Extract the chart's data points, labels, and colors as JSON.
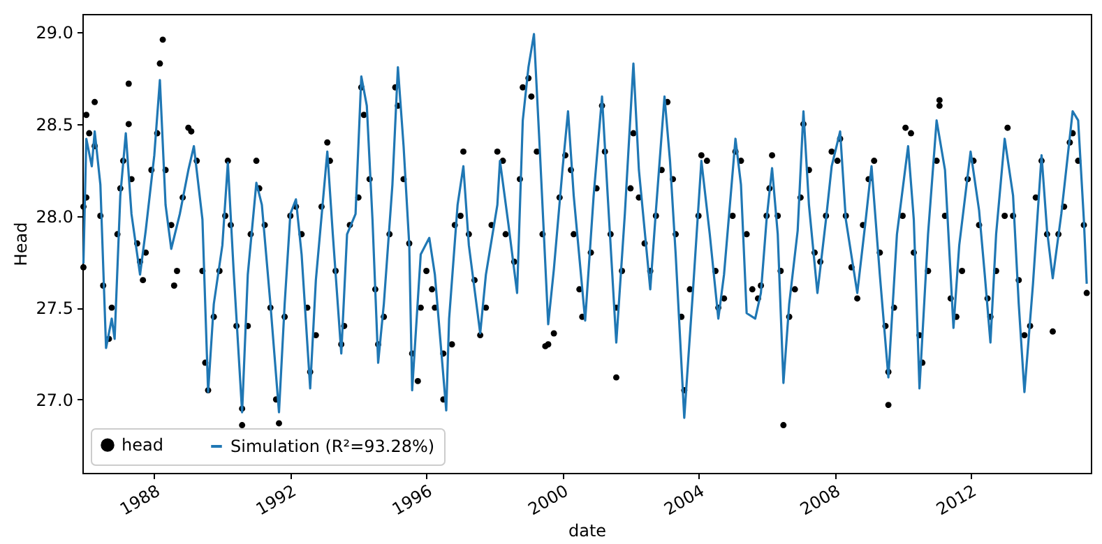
{
  "chart_data": {
    "type": "line",
    "xlabel": "date",
    "ylabel": "Head",
    "legend": "bottom left",
    "xlim": [
      "1985-11-20",
      "2015-07-15"
    ],
    "ylim": [
      26.6,
      29.1
    ],
    "xticks": [
      "1988",
      "1992",
      "1996",
      "2000",
      "2004",
      "2008",
      "2012"
    ],
    "yticks": [
      {
        "value": 27,
        "label": "27.0"
      },
      {
        "value": 27.5,
        "label": "27.5"
      },
      {
        "value": 28,
        "label": "28.0"
      },
      {
        "value": 28.5,
        "label": "28.5"
      },
      {
        "value": 29,
        "label": "29.0"
      }
    ],
    "series": [
      {
        "name": "head",
        "type": "scatter",
        "marker": "circle",
        "color": "#000000",
        "x": [
          "1985-12",
          "1985-12",
          "1986-01",
          "1986-01",
          "1986-02",
          "1986-04",
          "1986-04",
          "1986-06",
          "1986-07",
          "1986-09",
          "1986-10",
          "1986-12",
          "1987-01",
          "1987-02",
          "1987-04",
          "1987-04",
          "1987-05",
          "1987-07",
          "1987-08",
          "1987-09",
          "1987-10",
          "1987-12",
          "1988-02",
          "1988-03",
          "1988-04",
          "1988-05",
          "1988-07",
          "1988-08",
          "1988-09",
          "1988-11",
          "1989-01",
          "1989-02",
          "1989-04",
          "1989-06",
          "1989-07",
          "1989-08",
          "1989-10",
          "1989-12",
          "1990-02",
          "1990-03",
          "1990-04",
          "1990-06",
          "1990-08",
          "1990-08",
          "1990-10",
          "1990-11",
          "1991-01",
          "1991-02",
          "1991-04",
          "1991-06",
          "1991-08",
          "1991-09",
          "1991-11",
          "1992-01",
          "1992-03",
          "1992-05",
          "1992-07",
          "1992-08",
          "1992-10",
          "1992-12",
          "1993-02",
          "1993-03",
          "1993-05",
          "1993-07",
          "1993-08",
          "1993-10",
          "1994-01",
          "1994-02",
          "1994-03",
          "1994-05",
          "1994-07",
          "1994-08",
          "1994-10",
          "1994-12",
          "1995-02",
          "1995-03",
          "1995-05",
          "1995-07",
          "1995-08",
          "1995-10",
          "1995-11",
          "1996-01",
          "1996-03",
          "1996-04",
          "1996-07",
          "1996-07",
          "1996-10",
          "1996-11",
          "1997-01",
          "1997-02",
          "1997-04",
          "1997-06",
          "1997-08",
          "1997-10",
          "1997-12",
          "1998-02",
          "1998-04",
          "1998-05",
          "1998-08",
          "1998-10",
          "1998-11",
          "1999-01",
          "1999-02",
          "1999-04",
          "1999-06",
          "1999-07",
          "1999-08",
          "1999-10",
          "1999-12",
          "2000-02",
          "2000-04",
          "2000-05",
          "2000-07",
          "2000-08",
          "2000-11",
          "2001-01",
          "2001-03",
          "2001-04",
          "2001-06",
          "2001-08",
          "2001-08",
          "2001-10",
          "2002-01",
          "2002-02",
          "2002-04",
          "2002-06",
          "2002-08",
          "2002-10",
          "2002-12",
          "2003-02",
          "2003-04",
          "2003-05",
          "2003-07",
          "2003-08",
          "2003-10",
          "2004-01",
          "2004-02",
          "2004-04",
          "2004-07",
          "2004-08",
          "2004-10",
          "2005-01",
          "2005-02",
          "2005-04",
          "2005-06",
          "2005-08",
          "2005-10",
          "2005-11",
          "2006-01",
          "2006-02",
          "2006-03",
          "2006-05",
          "2006-06",
          "2006-07",
          "2006-09",
          "2006-11",
          "2007-01",
          "2007-02",
          "2007-04",
          "2007-06",
          "2007-08",
          "2007-10",
          "2007-12",
          "2008-02",
          "2008-03",
          "2008-05",
          "2008-07",
          "2008-09",
          "2008-11",
          "2009-01",
          "2009-03",
          "2009-05",
          "2009-07",
          "2009-08",
          "2009-08",
          "2009-10",
          "2010-01",
          "2010-02",
          "2010-04",
          "2010-05",
          "2010-07",
          "2010-08",
          "2010-10",
          "2011-01",
          "2011-02",
          "2011-02",
          "2011-04",
          "2011-06",
          "2011-08",
          "2011-10",
          "2011-12",
          "2012-02",
          "2012-04",
          "2012-07",
          "2012-08",
          "2012-10",
          "2013-01",
          "2013-02",
          "2013-04",
          "2013-06",
          "2013-08",
          "2013-10",
          "2013-12",
          "2014-02",
          "2014-04",
          "2014-06",
          "2014-08",
          "2014-10",
          "2014-12",
          "2015-01",
          "2015-03",
          "2015-05",
          "2015-06"
        ],
        "values": [
          27.72,
          28.05,
          28.1,
          28.55,
          28.45,
          28.62,
          28.38,
          28.0,
          27.62,
          27.33,
          27.5,
          27.9,
          28.15,
          28.3,
          28.72,
          28.5,
          28.2,
          27.85,
          27.75,
          27.65,
          27.8,
          28.25,
          28.45,
          28.83,
          28.96,
          28.25,
          27.95,
          27.62,
          27.7,
          28.1,
          28.48,
          28.46,
          28.3,
          27.7,
          27.2,
          27.05,
          27.45,
          27.7,
          28.0,
          28.3,
          27.95,
          27.4,
          26.95,
          26.86,
          27.4,
          27.9,
          28.3,
          28.15,
          27.95,
          27.5,
          27.0,
          26.87,
          27.45,
          28.0,
          28.05,
          27.9,
          27.5,
          27.15,
          27.35,
          28.05,
          28.4,
          28.3,
          27.7,
          27.3,
          27.4,
          27.95,
          28.1,
          28.7,
          28.55,
          28.2,
          27.6,
          27.3,
          27.45,
          27.9,
          28.7,
          28.6,
          28.2,
          27.85,
          27.25,
          27.1,
          27.5,
          27.7,
          27.6,
          27.5,
          27.25,
          27.0,
          27.3,
          27.95,
          28.0,
          28.35,
          27.9,
          27.65,
          27.35,
          27.5,
          27.95,
          28.35,
          28.3,
          27.9,
          27.75,
          28.2,
          28.7,
          28.75,
          28.65,
          28.35,
          27.9,
          27.29,
          27.3,
          27.36,
          28.1,
          28.33,
          28.25,
          27.9,
          27.6,
          27.45,
          27.8,
          28.15,
          28.6,
          28.35,
          27.9,
          27.5,
          27.12,
          27.7,
          28.15,
          28.45,
          28.1,
          27.85,
          27.7,
          28.0,
          28.25,
          28.62,
          28.2,
          27.9,
          27.45,
          27.05,
          27.6,
          28.0,
          28.33,
          28.3,
          27.7,
          27.5,
          27.55,
          28.0,
          28.35,
          28.3,
          27.9,
          27.6,
          27.55,
          27.62,
          28.0,
          28.15,
          28.33,
          28.0,
          27.7,
          26.86,
          27.45,
          27.6,
          28.1,
          28.5,
          28.25,
          27.8,
          27.75,
          28.0,
          28.35,
          28.3,
          28.42,
          28.0,
          27.72,
          27.55,
          27.95,
          28.2,
          28.3,
          27.8,
          27.4,
          27.15,
          26.97,
          27.5,
          28.0,
          28.48,
          28.45,
          27.8,
          27.35,
          27.2,
          27.7,
          28.3,
          28.6,
          28.63,
          28.0,
          27.55,
          27.45,
          27.7,
          28.2,
          28.3,
          27.95,
          27.55,
          27.45,
          27.7,
          28.0,
          28.48,
          28.0,
          27.65,
          27.35,
          27.4,
          28.1,
          28.3,
          27.9,
          27.37,
          27.9,
          28.05,
          28.4,
          28.45,
          28.3,
          27.95,
          27.58
        ]
      },
      {
        "name": "Simulation (R²=93.28%)",
        "type": "line",
        "line_style": "solid",
        "color": "#1f77b4",
        "x": [
          "1985-12",
          "1986-01",
          "1986-03",
          "1986-04",
          "1986-06",
          "1986-08",
          "1986-10",
          "1986-11",
          "1987-01",
          "1987-03",
          "1987-05",
          "1987-08",
          "1987-10",
          "1988-01",
          "1988-03",
          "1988-05",
          "1988-07",
          "1988-10",
          "1989-01",
          "1989-03",
          "1989-06",
          "1989-08",
          "1989-10",
          "1990-01",
          "1990-03",
          "1990-05",
          "1990-08",
          "1990-10",
          "1991-01",
          "1991-03",
          "1991-06",
          "1991-09",
          "1991-11",
          "1992-01",
          "1992-03",
          "1992-05",
          "1992-08",
          "1992-10",
          "1993-02",
          "1993-04",
          "1993-07",
          "1993-09",
          "1993-12",
          "1994-02",
          "1994-04",
          "1994-06",
          "1994-08",
          "1994-10",
          "1995-01",
          "1995-03",
          "1995-05",
          "1995-07",
          "1995-08",
          "1995-11",
          "1996-02",
          "1996-04",
          "1996-08",
          "1996-09",
          "1996-12",
          "1997-02",
          "1997-04",
          "1997-08",
          "1997-10",
          "1998-02",
          "1998-03",
          "1998-06",
          "1998-09",
          "1998-11",
          "1999-01",
          "1999-03",
          "1999-05",
          "1999-08",
          "1999-10",
          "2000-01",
          "2000-03",
          "2000-05",
          "2000-09",
          "2000-12",
          "2001-03",
          "2001-05",
          "2001-08",
          "2001-11",
          "2002-02",
          "2002-04",
          "2002-08",
          "2002-10",
          "2003-01",
          "2003-03",
          "2003-05",
          "2003-08",
          "2003-11",
          "2004-02",
          "2004-05",
          "2004-08",
          "2004-10",
          "2005-02",
          "2005-04",
          "2005-06",
          "2005-09",
          "2005-11",
          "2006-01",
          "2006-03",
          "2006-05",
          "2006-07",
          "2006-09",
          "2006-12",
          "2007-02",
          "2007-04",
          "2007-07",
          "2007-10",
          "2007-12",
          "2008-03",
          "2008-05",
          "2008-09",
          "2008-12",
          "2009-02",
          "2009-05",
          "2009-08",
          "2009-11",
          "2010-03",
          "2010-05",
          "2010-07",
          "2010-10",
          "2011-01",
          "2011-04",
          "2011-07",
          "2011-09",
          "2012-01",
          "2012-04",
          "2012-06",
          "2012-08",
          "2012-10",
          "2013-01",
          "2013-04",
          "2013-06",
          "2013-08",
          "2013-11",
          "2014-02",
          "2014-04",
          "2014-06",
          "2014-09",
          "2015-01",
          "2015-03",
          "2015-05",
          "2015-06"
        ],
        "values": [
          27.74,
          28.42,
          28.27,
          28.46,
          28.17,
          27.28,
          27.44,
          27.33,
          28.11,
          28.45,
          28.01,
          27.68,
          27.92,
          28.33,
          28.74,
          28.06,
          27.82,
          28.01,
          28.25,
          28.38,
          27.98,
          27.04,
          27.52,
          27.84,
          28.29,
          27.71,
          26.93,
          27.68,
          28.18,
          28.06,
          27.52,
          26.93,
          27.52,
          28.01,
          28.09,
          27.79,
          27.06,
          27.65,
          28.35,
          27.9,
          27.25,
          27.9,
          28.01,
          28.76,
          28.6,
          27.98,
          27.2,
          27.52,
          28.17,
          28.81,
          28.38,
          27.84,
          27.05,
          27.79,
          27.88,
          27.68,
          26.94,
          27.44,
          28.06,
          28.27,
          27.84,
          27.36,
          27.68,
          28.06,
          28.3,
          27.95,
          27.58,
          28.52,
          28.81,
          28.99,
          28.38,
          27.41,
          27.71,
          28.25,
          28.57,
          28.11,
          27.43,
          28.11,
          28.65,
          28.11,
          27.31,
          28.01,
          28.83,
          28.25,
          27.6,
          28.03,
          28.65,
          28.3,
          27.79,
          26.9,
          27.58,
          28.3,
          27.9,
          27.44,
          27.68,
          28.42,
          28.17,
          27.47,
          27.44,
          27.58,
          27.98,
          28.26,
          27.9,
          27.09,
          27.52,
          27.92,
          28.57,
          28.06,
          27.58,
          27.98,
          28.27,
          28.46,
          27.98,
          27.58,
          27.98,
          28.27,
          27.68,
          27.12,
          27.9,
          28.38,
          27.98,
          27.06,
          27.9,
          28.52,
          28.25,
          27.39,
          27.84,
          28.35,
          28.03,
          27.68,
          27.31,
          27.9,
          28.42,
          28.11,
          27.52,
          27.04,
          27.63,
          28.33,
          27.92,
          27.66,
          28.01,
          28.57,
          28.52,
          27.98,
          27.63
        ]
      }
    ]
  }
}
